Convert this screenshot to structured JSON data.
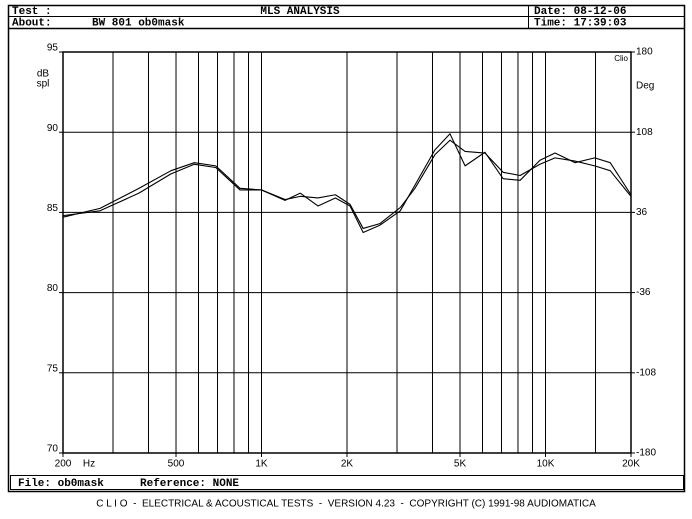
{
  "header": {
    "test_label": "Test :",
    "title": "MLS ANALYSIS",
    "date": "Date: 08-12-06",
    "about_label": "About:",
    "about": "BW 801 ob0mask",
    "time": "Time: 17:39:03"
  },
  "chart_data": {
    "type": "line",
    "x": [
      200,
      270,
      370,
      480,
      580,
      690,
      840,
      1000,
      1210,
      1370,
      1580,
      1820,
      2050,
      2280,
      2610,
      3080,
      3470,
      4080,
      4610,
      5210,
      6120,
      7090,
      8140,
      9560,
      10800,
      12700,
      14900,
      16900,
      20000
    ],
    "series": [
      {
        "color": "#000000",
        "values": [
          84.7,
          85.25,
          86.5,
          87.6,
          88.1,
          87.9,
          86.5,
          86.4,
          85.75,
          86.2,
          85.4,
          85.9,
          85.4,
          83.75,
          84.2,
          85.1,
          86.7,
          88.9,
          89.9,
          87.9,
          88.75,
          87.1,
          87.0,
          88.25,
          88.7,
          88.1,
          88.4,
          88.1,
          86.1
        ]
      },
      {
        "color": "#000000",
        "values": [
          84.8,
          85.1,
          86.2,
          87.4,
          88.0,
          87.8,
          86.4,
          86.4,
          85.8,
          86.0,
          85.9,
          86.1,
          85.5,
          84.0,
          84.3,
          85.3,
          86.5,
          88.6,
          89.5,
          88.8,
          88.7,
          87.5,
          87.3,
          88.0,
          88.4,
          88.2,
          87.9,
          87.6,
          86.0
        ]
      }
    ],
    "x_log": true,
    "xlim": [
      200,
      20000
    ],
    "xticks": [
      200,
      500,
      {
        "value": 1000,
        "label": "1K"
      },
      {
        "value": 2000,
        "label": "2K"
      },
      {
        "value": 5000,
        "label": "5K"
      },
      {
        "value": 10000,
        "label": "10K"
      },
      {
        "value": 20000,
        "label": "20K"
      }
    ],
    "x_minor": [
      300,
      400,
      600,
      700,
      800,
      900,
      3000,
      4000,
      6000,
      7000,
      8000,
      9000,
      15000
    ],
    "x_unit": "Hz",
    "ylim": [
      70,
      95
    ],
    "yticks": [
      95,
      90,
      85,
      80,
      75,
      70
    ],
    "y2lim": [
      -180,
      180
    ],
    "y2ticks": [
      180,
      108,
      36,
      -36,
      -108,
      -180
    ],
    "y_label": [
      "dB",
      "spl"
    ],
    "y2_label": "Deg",
    "corner_label": "Clio",
    "grid": true
  },
  "footer": {
    "file": "File: ob0mask",
    "reference": "Reference: NONE",
    "credits": "C L I O  -  ELECTRICAL & ACOUSTICAL TESTS  -  VERSION 4.23  -  COPYRIGHT (C) 1991-98 AUDIOMATICA"
  }
}
